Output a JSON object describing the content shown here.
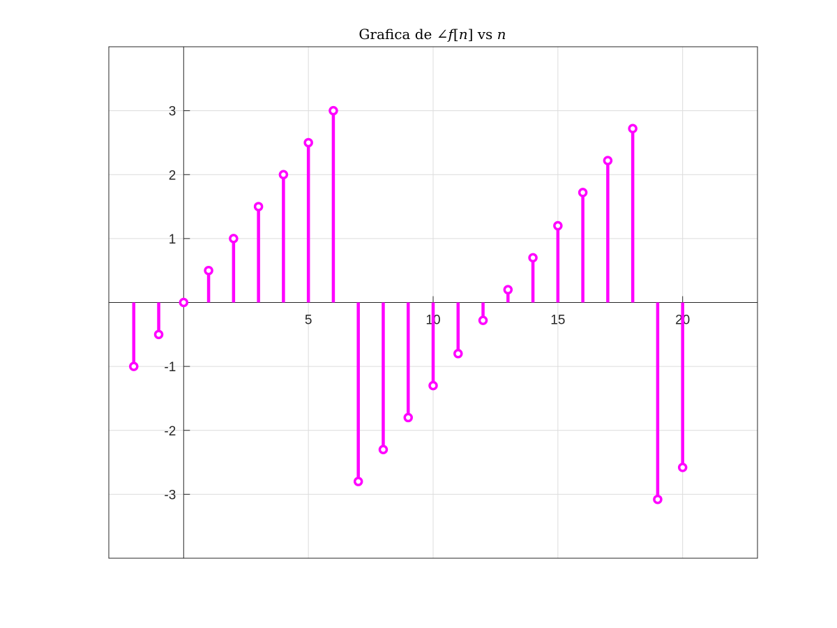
{
  "chart_data": {
    "type": "stem",
    "title": {
      "prefix": "Grafica de ∠",
      "math1": "f",
      "bracket_open": "[",
      "math2": "n",
      "bracket_close": "]",
      "middle": " vs ",
      "math3": "n"
    },
    "xlabel": "",
    "ylabel": "",
    "xlim": [
      -3,
      23
    ],
    "ylim": [
      -4,
      4
    ],
    "x_ticks": [
      5,
      10,
      15,
      20
    ],
    "y_ticks": [
      -3,
      -2,
      -1,
      1,
      2,
      3
    ],
    "grid": true,
    "axes_through_origin": true,
    "series": [
      {
        "color": "#ff00ff",
        "marker": "circle",
        "points": [
          {
            "x": -2,
            "y": -1.0
          },
          {
            "x": -1,
            "y": -0.5
          },
          {
            "x": 0,
            "y": 0.0
          },
          {
            "x": 1,
            "y": 0.5
          },
          {
            "x": 2,
            "y": 1.0
          },
          {
            "x": 3,
            "y": 1.5
          },
          {
            "x": 4,
            "y": 2.0
          },
          {
            "x": 5,
            "y": 2.5
          },
          {
            "x": 6,
            "y": 3.0
          },
          {
            "x": 7,
            "y": -2.8
          },
          {
            "x": 8,
            "y": -2.3
          },
          {
            "x": 9,
            "y": -1.8
          },
          {
            "x": 10,
            "y": -1.3
          },
          {
            "x": 11,
            "y": -0.8
          },
          {
            "x": 12,
            "y": -0.28
          },
          {
            "x": 13,
            "y": 0.2
          },
          {
            "x": 14,
            "y": 0.7
          },
          {
            "x": 15,
            "y": 1.2
          },
          {
            "x": 16,
            "y": 1.72
          },
          {
            "x": 17,
            "y": 2.22
          },
          {
            "x": 18,
            "y": 2.72
          },
          {
            "x": 19,
            "y": -3.08
          },
          {
            "x": 20,
            "y": -2.58
          }
        ]
      }
    ]
  }
}
